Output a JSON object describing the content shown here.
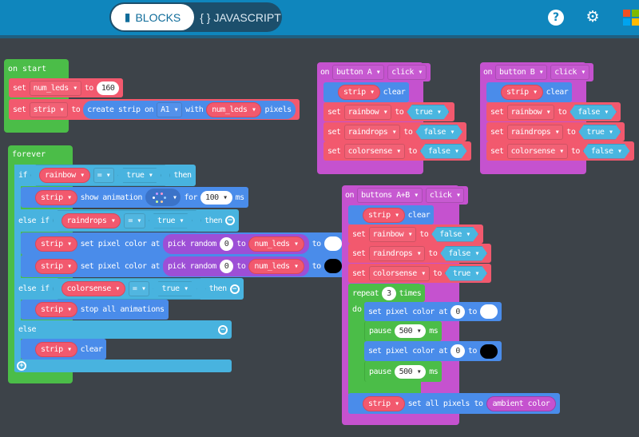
{
  "header": {
    "blocks_tab": "BLOCKS",
    "javascript_tab": "JAVASCRIPT",
    "javascript_braces": "{ }",
    "help_icon": "?",
    "settings_icon": "⚙"
  },
  "colors": {
    "header": "#0f86bd",
    "canvas": "#3d4349",
    "loops": "#4bbd48",
    "variables": "#f2596e",
    "neopixel": "#4a8cea",
    "logic": "#48b3df",
    "input": "#c552cf",
    "math": "#9d4fd6"
  },
  "on_start": {
    "title": "on start",
    "set1": {
      "kw": "set",
      "var": "num_leds ▾",
      "to": "to",
      "value": "160"
    },
    "set2": {
      "kw": "set",
      "var": "strip ▾",
      "to": "to",
      "create": "create strip on",
      "pin": "A1 ▾",
      "with": "with",
      "num": "num_leds ▾",
      "pixels": "pixels"
    }
  },
  "forever": {
    "title": "forever",
    "if1": {
      "kw": "if",
      "var": "rainbow ▾",
      "op": "= ▾",
      "val": "true ▾",
      "then": "then"
    },
    "anim": {
      "strip": "strip ▾",
      "text": "show animation",
      "dd": "▾",
      "for": "for",
      "ms_val": "100 ▾",
      "ms": "ms"
    },
    "if2": {
      "kw": "else if",
      "var": "raindrops ▾",
      "op": "= ▾",
      "val": "true ▾",
      "then": "then"
    },
    "px1": {
      "strip": "strip ▾",
      "text": "set pixel color at",
      "pick": "pick random",
      "from": "0",
      "to": "to",
      "max": "num_leds ▾",
      "to2": "to",
      "color": "#ffffff"
    },
    "px2": {
      "strip": "strip ▾",
      "text": "set pixel color at",
      "pick": "pick random",
      "from": "0",
      "to": "to",
      "max": "num_leds ▾",
      "to2": "to",
      "color": "#000000"
    },
    "if3": {
      "kw": "else if",
      "var": "colorsense ▾",
      "op": "= ▾",
      "val": "true ▾",
      "then": "then"
    },
    "stop": {
      "strip": "strip ▾",
      "text": "stop all animations"
    },
    "else": {
      "kw": "else"
    },
    "clear": {
      "strip": "strip ▾",
      "text": "clear"
    },
    "minus": "−",
    "plus": "+"
  },
  "button_a": {
    "on": "on",
    "button": "button A ▾",
    "event": "click ▾",
    "clear": {
      "strip": "strip ▾",
      "text": "clear"
    },
    "sets": [
      {
        "kw": "set",
        "var": "rainbow ▾",
        "to": "to",
        "val": "true ▾"
      },
      {
        "kw": "set",
        "var": "raindrops ▾",
        "to": "to",
        "val": "false ▾"
      },
      {
        "kw": "set",
        "var": "colorsense ▾",
        "to": "to",
        "val": "false ▾"
      }
    ]
  },
  "button_b": {
    "on": "on",
    "button": "button B ▾",
    "event": "click ▾",
    "clear": {
      "strip": "strip ▾",
      "text": "clear"
    },
    "sets": [
      {
        "kw": "set",
        "var": "rainbow ▾",
        "to": "to",
        "val": "false ▾"
      },
      {
        "kw": "set",
        "var": "raindrops ▾",
        "to": "to",
        "val": "true ▾"
      },
      {
        "kw": "set",
        "var": "colorsense ▾",
        "to": "to",
        "val": "false ▾"
      }
    ]
  },
  "button_ab": {
    "on": "on",
    "button": "buttons A+B ▾",
    "event": "click ▾",
    "clear": {
      "strip": "strip ▾",
      "text": "clear"
    },
    "sets": [
      {
        "kw": "set",
        "var": "rainbow ▾",
        "to": "to",
        "val": "false ▾"
      },
      {
        "kw": "set",
        "var": "raindrops ▾",
        "to": "to",
        "val": "false ▾"
      },
      {
        "kw": "set",
        "var": "colorsense ▾",
        "to": "to",
        "val": "true ▾"
      }
    ],
    "repeat": {
      "kw": "repeat",
      "count": "3",
      "times": "times",
      "do": "do"
    },
    "px1": {
      "text": "set pixel color at",
      "idx": "0",
      "to": "to",
      "color": "#ffffff"
    },
    "pause1": {
      "text": "pause",
      "val": "500 ▾",
      "ms": "ms"
    },
    "px2": {
      "text": "set pixel color at",
      "idx": "0",
      "to": "to",
      "color": "#000000"
    },
    "pause2": {
      "text": "pause",
      "val": "500 ▾",
      "ms": "ms"
    },
    "all": {
      "strip": "strip ▾",
      "text": "set all pixels to",
      "value": "ambient color"
    }
  }
}
